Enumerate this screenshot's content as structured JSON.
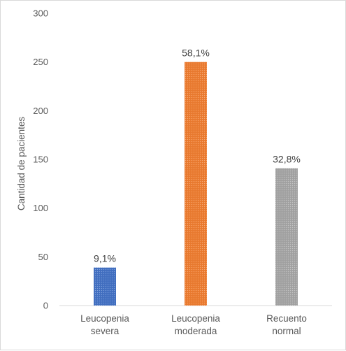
{
  "chart_data": {
    "type": "bar",
    "title": "",
    "xlabel": "",
    "ylabel": "Cantidad de pacientes",
    "ylim": [
      0,
      300
    ],
    "yticks": [
      0,
      50,
      100,
      150,
      200,
      250,
      300
    ],
    "grid": false,
    "legend": "none",
    "categories": [
      [
        "Leucopenia",
        "severa"
      ],
      [
        "Leucopenia",
        "moderada"
      ],
      [
        "Recuento",
        "normal"
      ]
    ],
    "values": [
      39,
      250,
      141
    ],
    "data_labels": [
      "9,1%",
      "58,1%",
      "32,8%"
    ],
    "colors": [
      "#4472c4",
      "#ed7d31",
      "#a5a5a5"
    ],
    "pattern": "dotted-fill"
  }
}
